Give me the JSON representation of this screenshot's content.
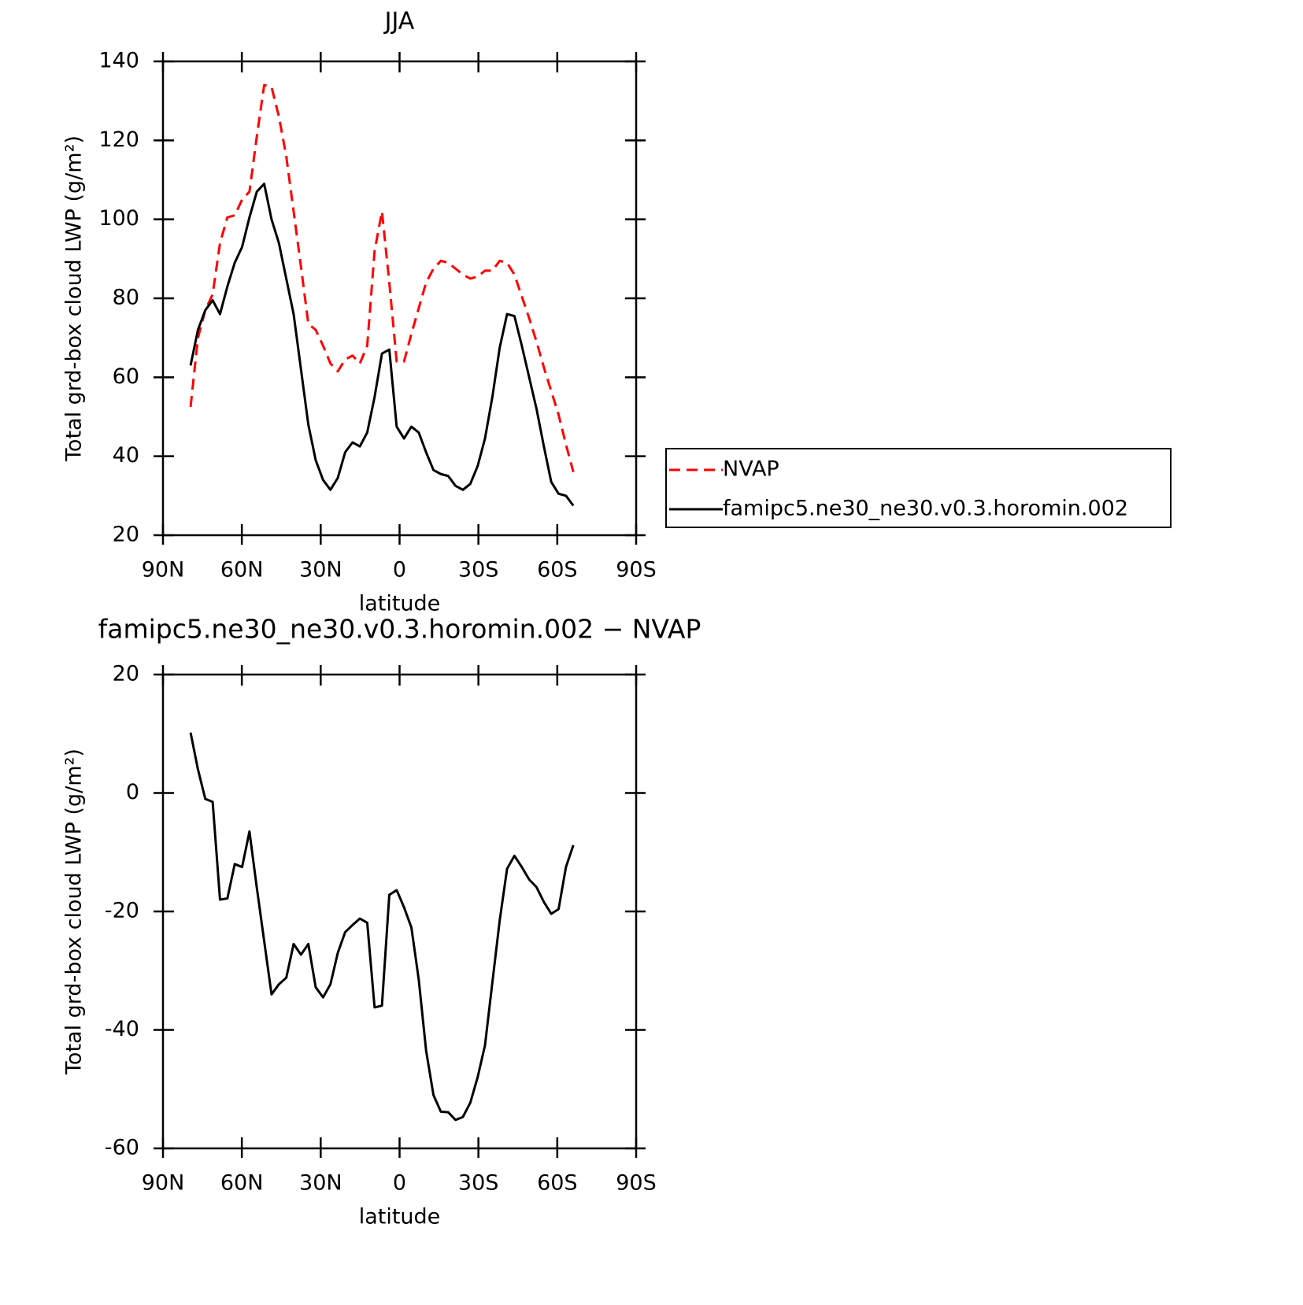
{
  "chart_data": [
    {
      "type": "line",
      "title": "JJA",
      "xlabel": "latitude",
      "ylabel": "Total grd-box cloud LWP (g/m²)",
      "x": [
        79.5,
        76.7,
        73.9,
        71.1,
        68.3,
        65.5,
        62.7,
        59.9,
        57.1,
        54.3,
        51.5,
        48.7,
        45.9,
        43.1,
        40.3,
        37.5,
        34.7,
        31.9,
        29.1,
        26.3,
        23.5,
        20.7,
        17.9,
        15.1,
        12.3,
        9.5,
        6.7,
        3.9,
        1.1,
        -1.7,
        -4.5,
        -7.3,
        -10.1,
        -12.9,
        -15.7,
        -18.5,
        -21.3,
        -24.1,
        -26.9,
        -29.7,
        -32.5,
        -35.3,
        -38.1,
        -40.9,
        -43.7,
        -46.5,
        -49.3,
        -52.1,
        -54.9,
        -57.7,
        -60.5,
        -63.3,
        -66.1
      ],
      "series": [
        {
          "name": "NVAP",
          "color": "#ff0000",
          "dashed": true,
          "values": [
            52.5,
            70,
            77,
            81,
            94,
            100.5,
            101,
            105,
            107,
            121,
            134,
            133.5,
            126,
            116,
            102,
            88,
            73.5,
            72,
            68,
            63.5,
            61.5,
            64.5,
            65.5,
            63.5,
            68,
            92,
            102,
            84,
            64,
            64,
            71,
            77.5,
            84,
            87.5,
            89.5,
            89,
            87.5,
            86,
            85,
            85.5,
            87,
            87,
            89.5,
            89,
            86,
            80.5,
            75,
            69,
            62.5,
            56.5,
            50.5,
            43,
            36
          ]
        },
        {
          "name": "famipc5.ne30_ne30.v0.3.horomin.002",
          "color": "#000000",
          "dashed": false,
          "values": [
            63,
            72,
            77,
            79.5,
            76,
            83,
            89,
            93,
            100.5,
            107,
            109,
            100,
            94,
            85,
            76,
            62,
            48,
            39,
            34,
            31.5,
            34.5,
            41,
            43.5,
            42.5,
            46,
            55,
            66,
            67,
            47.5,
            44.5,
            47.5,
            46,
            41,
            36.5,
            35.5,
            35,
            32.5,
            31.5,
            33,
            37.5,
            44.5,
            55,
            67.5,
            76,
            75.5,
            68,
            60,
            52,
            42.5,
            33.5,
            30.5,
            30,
            27.5
          ]
        }
      ],
      "xlim": [
        90,
        -90
      ],
      "xticks": [
        {
          "value": 90,
          "label": "90N"
        },
        {
          "value": 60,
          "label": "60N"
        },
        {
          "value": 30,
          "label": "30N"
        },
        0,
        {
          "value": -30,
          "label": "30S"
        },
        {
          "value": -60,
          "label": "60S"
        },
        {
          "value": -90,
          "label": "90S"
        }
      ],
      "ylim": [
        20,
        140
      ],
      "yticks": [
        20,
        40,
        60,
        80,
        100,
        120,
        140
      ],
      "legend": "right"
    },
    {
      "type": "line",
      "title": "famipc5.ne30_ne30.v0.3.horomin.002 − NVAP",
      "xlabel": "latitude",
      "ylabel": "Total grd-box cloud LWP (g/m²)",
      "x": [
        79.5,
        76.7,
        73.9,
        71.1,
        68.3,
        65.5,
        62.7,
        59.9,
        57.1,
        54.3,
        51.5,
        48.7,
        45.9,
        43.1,
        40.3,
        37.5,
        34.7,
        31.9,
        29.1,
        26.3,
        23.5,
        20.7,
        17.9,
        15.1,
        12.3,
        9.5,
        6.7,
        3.9,
        1.1,
        -1.7,
        -4.5,
        -7.3,
        -10.1,
        -12.9,
        -15.7,
        -18.5,
        -21.3,
        -24.1,
        -26.9,
        -29.7,
        -32.5,
        -35.3,
        -38.1,
        -40.9,
        -43.7,
        -46.5,
        -49.3,
        -52.1,
        -54.9,
        -57.7,
        -60.5,
        -63.3,
        -66.1
      ],
      "series": [
        {
          "color": "#000000",
          "dashed": false,
          "values": [
            10.2,
            4,
            -1,
            -1.5,
            -18,
            -17.8,
            -12,
            -12.5,
            -6.5,
            -16,
            -25,
            -34,
            -32.3,
            -31.2,
            -25.5,
            -27.3,
            -25.5,
            -32.8,
            -34.5,
            -32.3,
            -27,
            -23.5,
            -22.3,
            -21.2,
            -21.9,
            -36.2,
            -35.9,
            -17.2,
            -16.4,
            -19.3,
            -22.7,
            -31.5,
            -43.5,
            -51,
            -53.8,
            -53.9,
            -55.2,
            -54.7,
            -52.3,
            -48,
            -42.6,
            -32,
            -21.5,
            -12.8,
            -10.6,
            -12.5,
            -14.6,
            -15.9,
            -18.4,
            -20.4,
            -19.6,
            -12.5,
            -8.8
          ]
        }
      ],
      "xlim": [
        90,
        -90
      ],
      "xticks": [
        {
          "value": 90,
          "label": "90N"
        },
        {
          "value": 60,
          "label": "60N"
        },
        {
          "value": 30,
          "label": "30N"
        },
        0,
        {
          "value": -30,
          "label": "30S"
        },
        {
          "value": -60,
          "label": "60S"
        },
        {
          "value": -90,
          "label": "90S"
        }
      ],
      "ylim": [
        -60,
        20
      ],
      "yticks": [
        -60,
        -40,
        -20,
        0,
        20
      ]
    }
  ]
}
